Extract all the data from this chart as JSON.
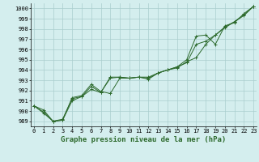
{
  "xlabel": "Graphe pression niveau de la mer (hPa)",
  "hours": [
    0,
    1,
    2,
    3,
    4,
    5,
    6,
    7,
    8,
    9,
    10,
    11,
    12,
    13,
    14,
    15,
    16,
    17,
    18,
    19,
    20,
    21,
    22,
    23
  ],
  "line1": [
    990.5,
    989.8,
    989.0,
    989.2,
    991.2,
    991.4,
    992.4,
    991.8,
    993.2,
    993.3,
    993.2,
    993.3,
    993.2,
    993.7,
    994.0,
    994.2,
    994.8,
    995.2,
    996.5,
    997.4,
    998.1,
    998.7,
    999.3,
    1000.2
  ],
  "line2": [
    990.5,
    989.9,
    989.0,
    989.1,
    991.0,
    991.4,
    992.1,
    991.8,
    993.3,
    993.3,
    993.2,
    993.3,
    993.3,
    993.7,
    994.0,
    994.3,
    995.0,
    997.3,
    997.4,
    996.5,
    998.3,
    998.6,
    999.5,
    1000.2
  ],
  "line3": [
    990.5,
    990.1,
    989.0,
    989.1,
    991.3,
    991.5,
    992.6,
    991.9,
    991.7,
    993.2,
    993.2,
    993.3,
    993.1,
    993.7,
    994.0,
    994.3,
    994.7,
    996.5,
    996.8,
    997.4,
    998.2,
    998.7,
    999.4,
    1000.2
  ],
  "line_color": "#2d6a2d",
  "bg_color": "#d4eeee",
  "grid_color": "#aacece",
  "yticks": [
    989,
    990,
    991,
    992,
    993,
    994,
    995,
    996,
    997,
    998,
    999,
    1000
  ],
  "xticks": [
    0,
    1,
    2,
    3,
    4,
    5,
    6,
    7,
    8,
    9,
    10,
    11,
    12,
    13,
    14,
    15,
    16,
    17,
    18,
    19,
    20,
    21,
    22,
    23
  ],
  "ylim_low": 988.5,
  "ylim_high": 1000.5,
  "tick_label_fontsize": 5.0,
  "xlabel_fontsize": 6.5
}
